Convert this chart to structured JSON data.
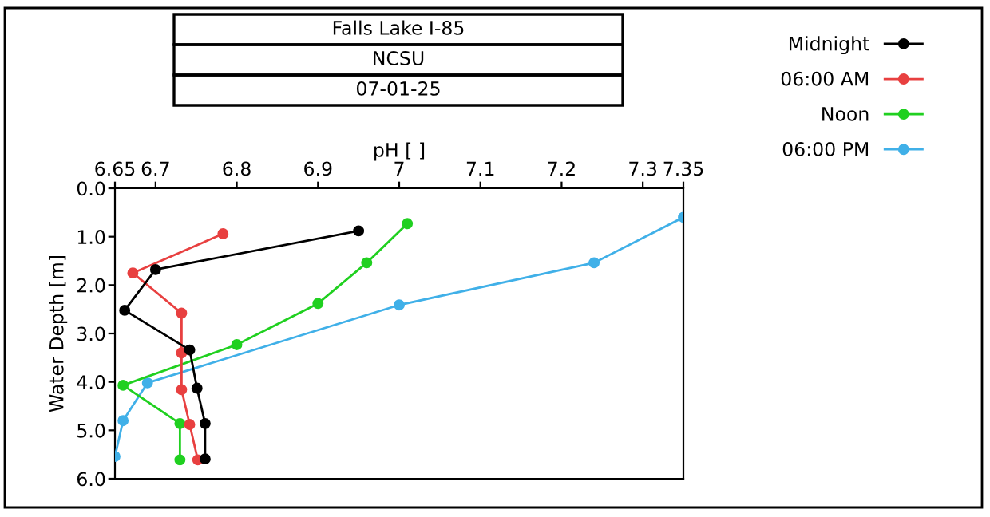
{
  "chart_data": {
    "type": "line",
    "title": "Falls Lake I-85",
    "subtitle": "NCSU",
    "annotations": [
      "07-01-25"
    ],
    "xlabel": "pH [ ]",
    "ylabel": "Water Depth [m]",
    "xlim": [
      6.65,
      7.35
    ],
    "xticks": [
      6.65,
      6.7,
      6.8,
      6.9,
      7,
      7.1,
      7.2,
      7.3,
      7.35
    ],
    "ylim": [
      6,
      0
    ],
    "yticks": [
      {
        "value": 0,
        "label": "0.0"
      },
      {
        "value": 1,
        "label": "1.0"
      },
      {
        "value": 2,
        "label": "2.0"
      },
      {
        "value": 3,
        "label": "3.0"
      },
      {
        "value": 4,
        "label": "4.0"
      },
      {
        "value": 5,
        "label": "5.0"
      },
      {
        "value": 6,
        "label": "6.0"
      }
    ],
    "grid": false,
    "legend": "right",
    "marker": "circle",
    "line_style": "solid",
    "series": [
      {
        "name": "Midnight",
        "color": "#000000",
        "x": [
          6.95,
          6.7,
          6.662,
          6.742,
          6.751,
          6.761,
          6.761
        ],
        "values": [
          0.88,
          1.68,
          2.52,
          3.34,
          4.13,
          4.86,
          5.59
        ]
      },
      {
        "name": "06:00 AM",
        "color": "#e84040",
        "x": [
          6.783,
          6.672,
          6.732,
          6.732,
          6.732,
          6.742,
          6.752
        ],
        "values": [
          0.94,
          1.75,
          2.58,
          3.4,
          4.16,
          4.88,
          5.61
        ]
      },
      {
        "name": "Noon",
        "color": "#20d020",
        "x": [
          7.01,
          6.96,
          6.9,
          6.8,
          6.66,
          6.73,
          6.73
        ],
        "values": [
          0.73,
          1.54,
          2.38,
          3.23,
          4.07,
          4.86,
          5.61
        ]
      },
      {
        "name": "06:00 PM",
        "color": "#40b0e8",
        "x": [
          7.35,
          7.24,
          7.0,
          6.8,
          6.69,
          6.66,
          6.65
        ],
        "values": [
          0.6,
          1.54,
          2.41,
          null,
          4.02,
          4.8,
          5.54
        ]
      }
    ]
  }
}
